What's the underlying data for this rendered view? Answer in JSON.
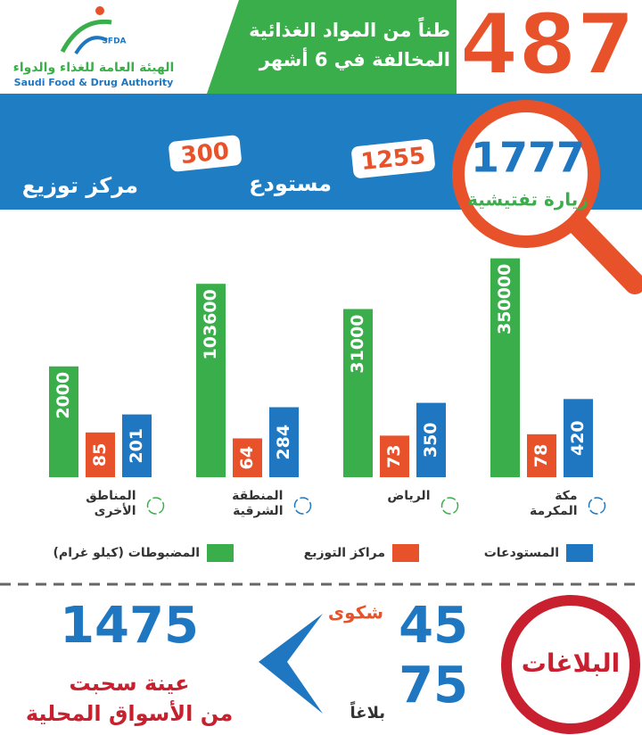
{
  "logo": {
    "abbr": "SFDA",
    "name_ar": "الهيئة العامة للغذاء والدواء",
    "name_en": "Saudi Food & Drug Authority"
  },
  "header": {
    "number": 487,
    "lines": [
      "طناً من المواد الغذائية",
      "المخالفة في 6 أشهر"
    ]
  },
  "inspections": {
    "visits": 1777,
    "visits_label": "زيارة تفتيشية",
    "warehouses": 1255,
    "warehouses_label": "مستودع",
    "distribution": 300,
    "distribution_label": "مركز توزيع"
  },
  "chart_data": {
    "type": "bar",
    "categories": [
      "مكة المكرمة",
      "الرياض",
      "المنطقة الشرقية",
      "المناطق الأخرى"
    ],
    "log_scale": true,
    "ylim": [
      10,
      1000000
    ],
    "series": [
      {
        "name": "المستودعات",
        "color": "#1e77c0",
        "values": [
          420,
          350,
          284,
          201
        ]
      },
      {
        "name": "مراكز التوزيع",
        "color": "#e8522a",
        "values": [
          78,
          73,
          64,
          85
        ]
      },
      {
        "name": "المضبوطات (كيلو غرام)",
        "color": "#3aae4a",
        "values": [
          350000,
          31000,
          103600,
          2000
        ]
      }
    ]
  },
  "reports": {
    "title": "البلاغات",
    "complaints": 45,
    "complaints_label": "شكوى",
    "reports": 75,
    "reports_label": "بلاغاً",
    "samples": 1475,
    "samples_lines": [
      "عينة سحبت",
      "من الأسواق المحلية"
    ]
  }
}
